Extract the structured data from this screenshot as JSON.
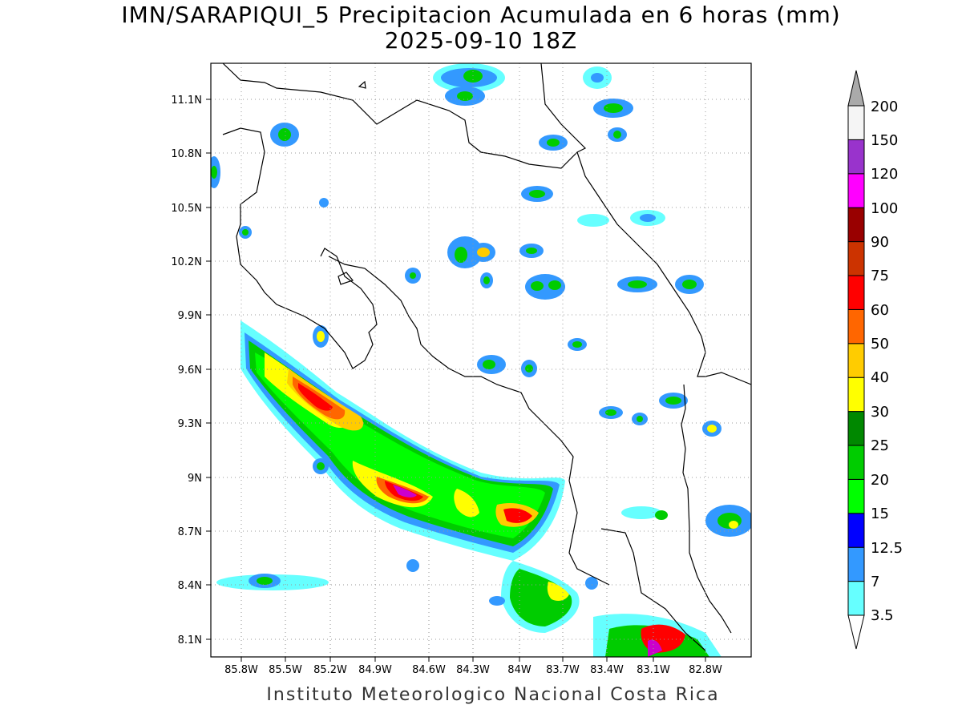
{
  "title": {
    "line1": "IMN/SARAPIQUI_5 Precipitacion Acumulada en 6 horas (mm)",
    "line2": "2025-09-10 18Z"
  },
  "footer": "Instituto Meteorologico Nacional Costa Rica",
  "axes": {
    "x_ticks": [
      "85.8W",
      "85.5W",
      "85.2W",
      "84.9W",
      "84.6W",
      "84.3W",
      "84W",
      "83.7W",
      "83.4W",
      "83.1W",
      "82.8W"
    ],
    "y_ticks": [
      "11.1N",
      "10.8N",
      "10.5N",
      "10.2N",
      "9.9N",
      "9.6N",
      "9.3N",
      "9N",
      "8.7N",
      "8.4N",
      "8.1N"
    ],
    "grid": true
  },
  "colorbar": {
    "labels": [
      "3.5",
      "7",
      "12.5",
      "15",
      "20",
      "25",
      "30",
      "40",
      "50",
      "60",
      "75",
      "90",
      "100",
      "120",
      "150",
      "200"
    ],
    "colors": [
      "#66ffff",
      "#3399ff",
      "#0000ff",
      "#00ff00",
      "#00cc00",
      "#008800",
      "#ffff00",
      "#ffcc00",
      "#ff6600",
      "#ff0000",
      "#cc3300",
      "#990000",
      "#ff00ff",
      "#9933cc",
      "#f5f5f5",
      "#aaaaaa"
    ]
  }
}
